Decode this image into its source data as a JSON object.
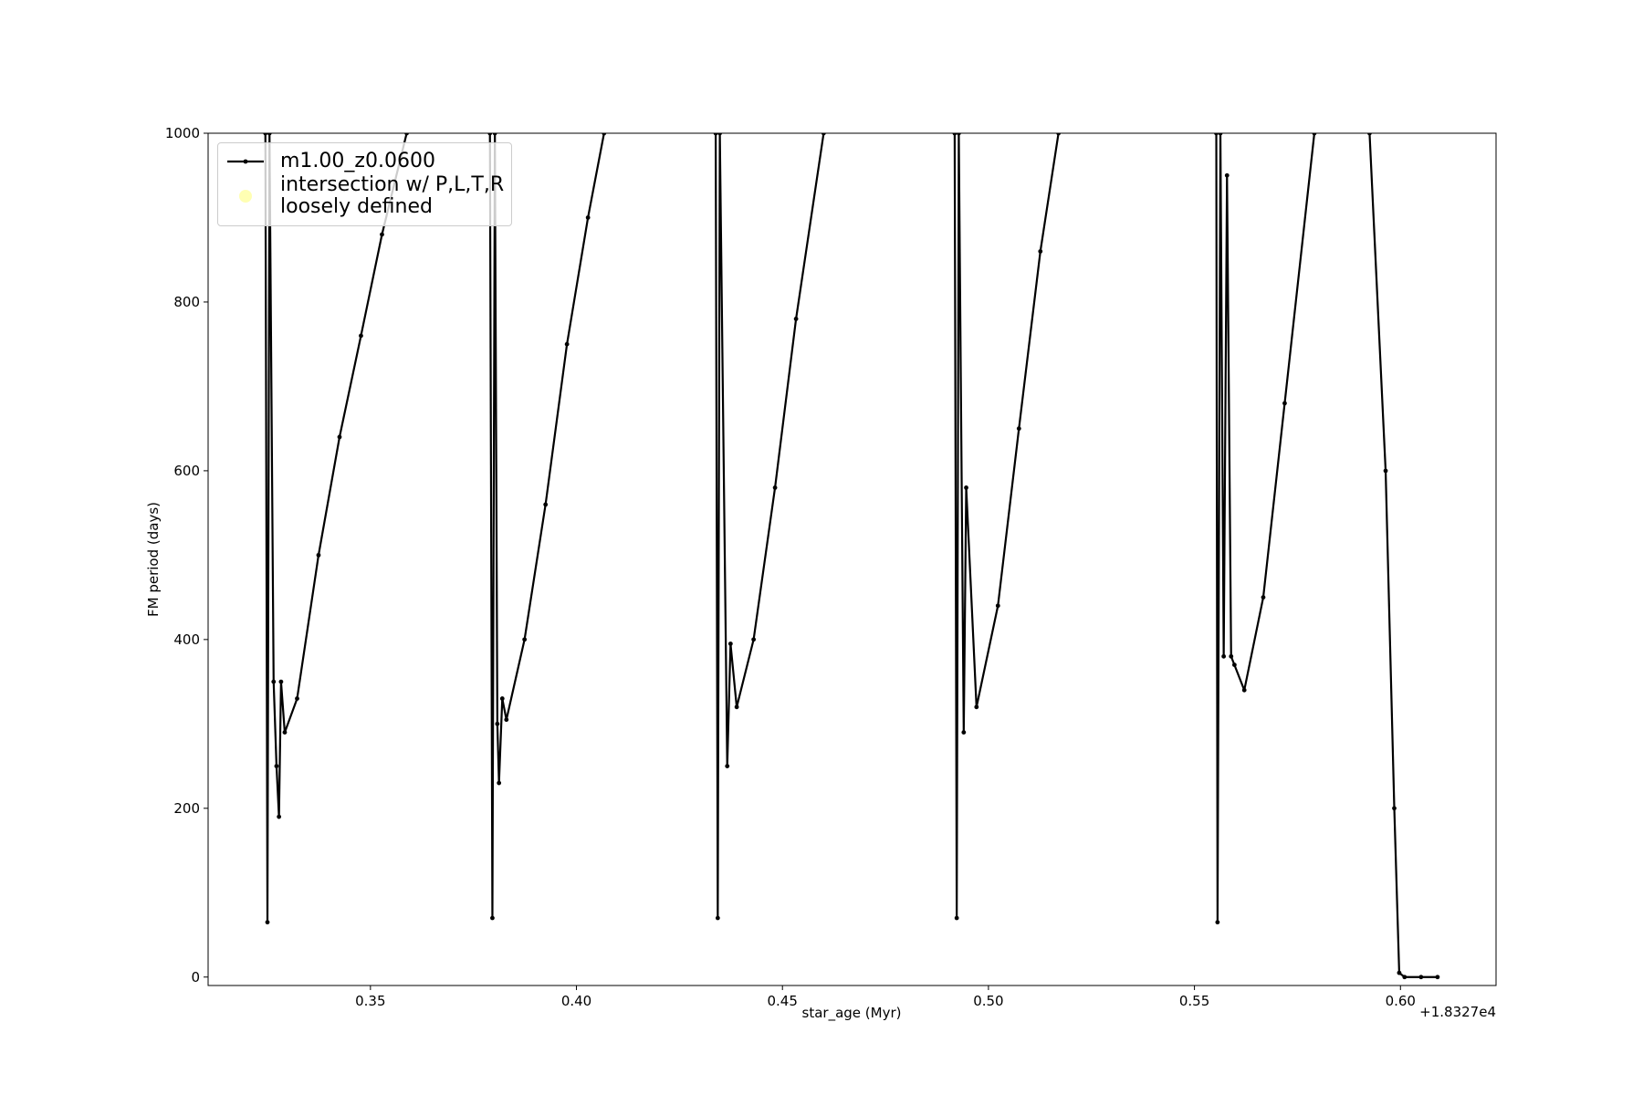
{
  "chart_data": {
    "type": "line",
    "x_label": "star_age (Myr)",
    "y_label": "FM period (days)",
    "x_offset_label": "+1.8327e4",
    "xlim": [
      18327.3106,
      18327.6232
    ],
    "ylim": [
      -10,
      1000
    ],
    "xticks": [
      {
        "value": 18327.35,
        "label": "0.35"
      },
      {
        "value": 18327.4,
        "label": "0.40"
      },
      {
        "value": 18327.45,
        "label": "0.45"
      },
      {
        "value": 18327.5,
        "label": "0.50"
      },
      {
        "value": 18327.55,
        "label": "0.55"
      },
      {
        "value": 18327.6,
        "label": "0.60"
      }
    ],
    "yticks": [
      0,
      200,
      400,
      600,
      800,
      1000
    ],
    "legend": "upper left",
    "series": [
      {
        "name": "m1.00_z0.0600",
        "color": "#000000",
        "x": [
          18327.3245,
          18327.325,
          18327.3255,
          18327.3265,
          18327.3272,
          18327.3278,
          18327.3283,
          18327.3292,
          18327.3322,
          18327.3374,
          18327.3425,
          18327.3477,
          18327.3528,
          18327.3588,
          null,
          18327.379,
          18327.3796,
          18327.3802,
          18327.3808,
          18327.3812,
          18327.382,
          18327.383,
          18327.3874,
          18327.3925,
          18327.3977,
          18327.4028,
          18327.4067,
          null,
          18327.4338,
          18327.4343,
          18327.4348,
          18327.4366,
          18327.4374,
          18327.4389,
          18327.443,
          18327.4482,
          18327.4533,
          18327.46,
          null,
          18327.4918,
          18327.4923,
          18327.4928,
          18327.494,
          18327.4946,
          18327.4971,
          18327.5023,
          18327.5074,
          18327.5126,
          18327.517,
          null,
          18327.5553,
          18327.5556,
          18327.5563,
          18327.5571,
          18327.5579,
          18327.5589,
          18327.5597,
          18327.5621,
          18327.5667,
          18327.5719,
          18327.5791,
          null,
          18327.5925,
          18327.5964,
          18327.5985,
          18327.5997,
          18327.601,
          18327.605,
          18327.609
        ],
        "values": [
          1000,
          65,
          1000,
          350,
          250,
          190,
          350,
          290,
          330,
          500,
          640,
          760,
          880,
          1000,
          null,
          1000,
          70,
          1000,
          300,
          230,
          330,
          305,
          400,
          560,
          750,
          900,
          1000,
          null,
          1000,
          70,
          1000,
          250,
          395,
          320,
          400,
          580,
          780,
          1000,
          null,
          1000,
          70,
          1000,
          290,
          580,
          320,
          440,
          650,
          860,
          1000,
          null,
          1000,
          65,
          1000,
          380,
          950,
          380,
          370,
          340,
          450,
          680,
          1000,
          null,
          1000,
          600,
          200,
          5,
          0,
          0,
          0
        ]
      },
      {
        "name": "intersection w/ P,L,T,R\nloosely defined",
        "color": "#ffffb3",
        "type": "scatter",
        "x": [],
        "values": []
      }
    ]
  }
}
